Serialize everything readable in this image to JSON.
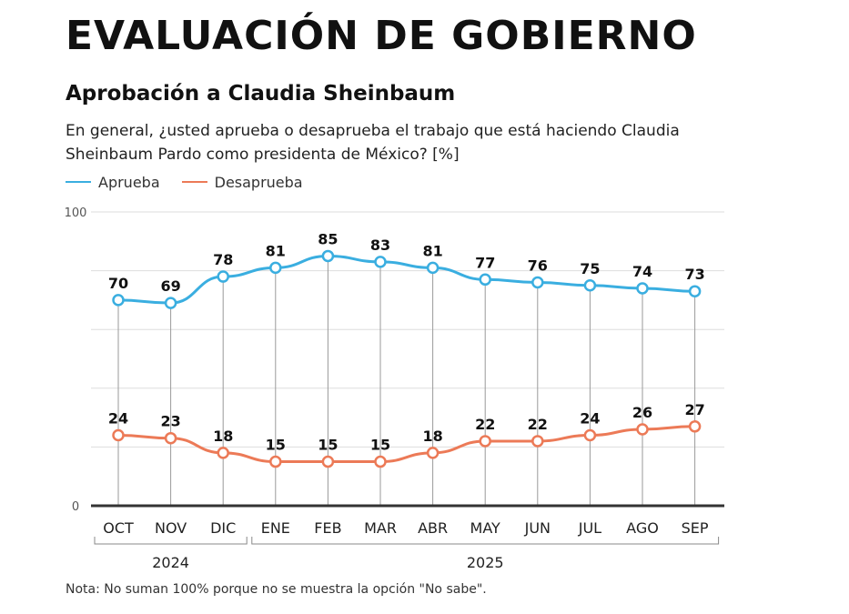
{
  "header": {
    "title": "EVALUACIÓN DE GOBIERNO",
    "subtitle": "Aprobación a Claudia Sheinbaum",
    "question": "En general, ¿usted aprueba o desaprueba el trabajo que está haciendo Claudia Sheinbaum Pardo como presidenta de México? [%]"
  },
  "note": "Nota: No suman 100% porque no se muestra la opción \"No sabe\".",
  "colors": {
    "aprueba": "#3aaee0",
    "desaprueba": "#ec7a57",
    "axis": "#333333",
    "grid": "#dddddd",
    "dropline": "#9a9a9a"
  },
  "chart_data": {
    "type": "line",
    "categories": [
      "OCT",
      "NOV",
      "DIC",
      "ENE",
      "FEB",
      "MAR",
      "ABR",
      "MAY",
      "JUN",
      "JUL",
      "AGO",
      "SEP"
    ],
    "year_groups": [
      {
        "label": "2024",
        "categories": [
          "OCT",
          "NOV",
          "DIC"
        ]
      },
      {
        "label": "2025",
        "categories": [
          "ENE",
          "FEB",
          "MAR",
          "ABR",
          "MAY",
          "JUN",
          "JUL",
          "AGO",
          "SEP"
        ]
      }
    ],
    "series": [
      {
        "name": "Aprueba",
        "color": "#3aaee0",
        "values": [
          70,
          69,
          78,
          81,
          85,
          83,
          81,
          77,
          76,
          75,
          74,
          73
        ]
      },
      {
        "name": "Desaprueba",
        "color": "#ec7a57",
        "values": [
          24,
          23,
          18,
          15,
          15,
          15,
          18,
          22,
          22,
          24,
          26,
          27
        ]
      }
    ],
    "ylim": [
      0,
      100
    ],
    "yticks": [
      0,
      100
    ],
    "grid": true,
    "legend": "top-left",
    "unit": "%"
  }
}
